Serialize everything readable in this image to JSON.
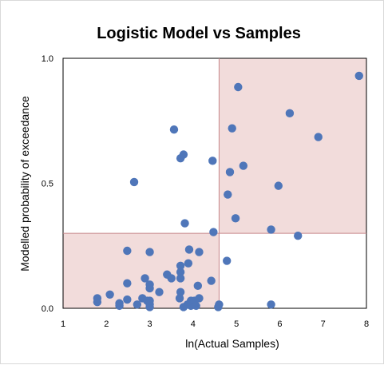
{
  "chart_data": {
    "type": "scatter",
    "title": "Logistic Model vs Samples",
    "xlabel": "ln(Actual Samples)",
    "ylabel": "Modelled probability of exceedance",
    "xlim": [
      1,
      8
    ],
    "ylim": [
      0,
      1
    ],
    "x_ticks": [
      "1",
      "2",
      "3",
      "4",
      "5",
      "6",
      "7",
      "8"
    ],
    "x_tick_values": [
      1,
      2,
      3,
      4,
      5,
      6,
      7,
      8
    ],
    "y_ticks": [
      "0.0",
      "0.5",
      "1.0"
    ],
    "y_tick_values": [
      0,
      0.5,
      1
    ],
    "grid": false,
    "legend": "none",
    "marker_color": "#4f76b9",
    "region_color": "#f2dcdb",
    "threshold_line_color": "#c6868a",
    "x_threshold": 4.6,
    "y_threshold": 0.3,
    "shaded_regions": [
      {
        "x": [
          1,
          4.6
        ],
        "y": [
          0,
          0.3
        ]
      },
      {
        "x": [
          4.6,
          8
        ],
        "y": [
          0.3,
          1
        ]
      }
    ],
    "points": [
      {
        "x": 1.79,
        "y": 0.025
      },
      {
        "x": 1.79,
        "y": 0.04
      },
      {
        "x": 2.08,
        "y": 0.055
      },
      {
        "x": 2.3,
        "y": 0.01
      },
      {
        "x": 2.3,
        "y": 0.02
      },
      {
        "x": 2.48,
        "y": 0.035
      },
      {
        "x": 2.48,
        "y": 0.1
      },
      {
        "x": 2.48,
        "y": 0.23
      },
      {
        "x": 2.64,
        "y": 0.505
      },
      {
        "x": 2.71,
        "y": 0.015
      },
      {
        "x": 2.83,
        "y": 0.04
      },
      {
        "x": 2.89,
        "y": 0.12
      },
      {
        "x": 2.94,
        "y": 0.03
      },
      {
        "x": 3.0,
        "y": 0.005
      },
      {
        "x": 3.0,
        "y": 0.015
      },
      {
        "x": 3.0,
        "y": 0.03
      },
      {
        "x": 3.0,
        "y": 0.08
      },
      {
        "x": 3.0,
        "y": 0.095
      },
      {
        "x": 3.0,
        "y": 0.225
      },
      {
        "x": 3.22,
        "y": 0.065
      },
      {
        "x": 3.4,
        "y": 0.135
      },
      {
        "x": 3.5,
        "y": 0.12
      },
      {
        "x": 3.56,
        "y": 0.715
      },
      {
        "x": 3.69,
        "y": 0.04
      },
      {
        "x": 3.71,
        "y": 0.065
      },
      {
        "x": 3.71,
        "y": 0.12
      },
      {
        "x": 3.71,
        "y": 0.145
      },
      {
        "x": 3.71,
        "y": 0.17
      },
      {
        "x": 3.71,
        "y": 0.6
      },
      {
        "x": 3.78,
        "y": 0.615
      },
      {
        "x": 3.78,
        "y": 0.005
      },
      {
        "x": 3.81,
        "y": 0.34
      },
      {
        "x": 3.87,
        "y": 0.015
      },
      {
        "x": 3.89,
        "y": 0.18
      },
      {
        "x": 3.91,
        "y": 0.235
      },
      {
        "x": 3.95,
        "y": 0.01
      },
      {
        "x": 3.95,
        "y": 0.03
      },
      {
        "x": 4.03,
        "y": 0.03
      },
      {
        "x": 4.07,
        "y": 0.01
      },
      {
        "x": 4.11,
        "y": 0.09
      },
      {
        "x": 4.14,
        "y": 0.04
      },
      {
        "x": 4.14,
        "y": 0.225
      },
      {
        "x": 4.42,
        "y": 0.11
      },
      {
        "x": 4.45,
        "y": 0.59
      },
      {
        "x": 4.47,
        "y": 0.305
      },
      {
        "x": 4.58,
        "y": 0.005
      },
      {
        "x": 4.6,
        "y": 0.015
      },
      {
        "x": 4.78,
        "y": 0.19
      },
      {
        "x": 4.8,
        "y": 0.455
      },
      {
        "x": 4.85,
        "y": 0.545
      },
      {
        "x": 4.9,
        "y": 0.72
      },
      {
        "x": 4.98,
        "y": 0.36
      },
      {
        "x": 5.04,
        "y": 0.885
      },
      {
        "x": 5.16,
        "y": 0.57
      },
      {
        "x": 5.8,
        "y": 0.315
      },
      {
        "x": 5.8,
        "y": 0.015
      },
      {
        "x": 5.97,
        "y": 0.49
      },
      {
        "x": 6.23,
        "y": 0.78
      },
      {
        "x": 6.42,
        "y": 0.29
      },
      {
        "x": 6.89,
        "y": 0.685
      },
      {
        "x": 7.83,
        "y": 0.93
      }
    ]
  }
}
